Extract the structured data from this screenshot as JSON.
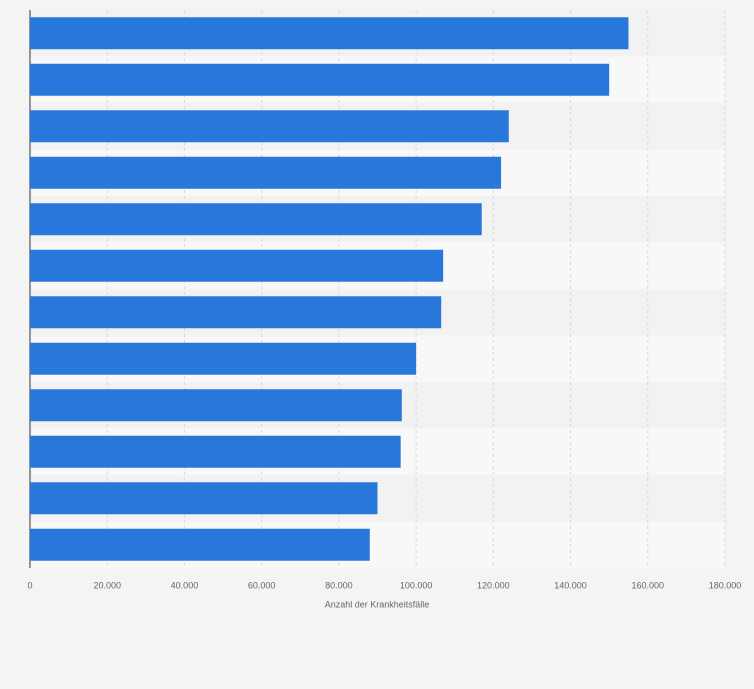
{
  "chart_data": {
    "type": "hbar",
    "categories": [
      null,
      null,
      null,
      null,
      null,
      null,
      null,
      null,
      null,
      null,
      null,
      null
    ],
    "values": [
      155000,
      150000,
      124000,
      122000,
      117000,
      107000,
      106500,
      100000,
      96300,
      96000,
      90000,
      88000
    ],
    "color": "#2878dc",
    "xlabel": "Anzahl der Krankheitsfälle",
    "xlim": [
      0,
      180000
    ],
    "xticks": [
      0,
      {
        "value": 20000,
        "label": "20.000"
      },
      {
        "value": 40000,
        "label": "40.000"
      },
      {
        "value": 60000,
        "label": "60.000"
      },
      {
        "value": 80000,
        "label": "80.000"
      },
      {
        "value": 100000,
        "label": "100.000"
      },
      {
        "value": 120000,
        "label": "120.000"
      },
      {
        "value": 140000,
        "label": "140.000"
      },
      {
        "value": 160000,
        "label": "160.000"
      },
      {
        "value": 180000,
        "label": "180.000"
      }
    ],
    "grid": true
  }
}
